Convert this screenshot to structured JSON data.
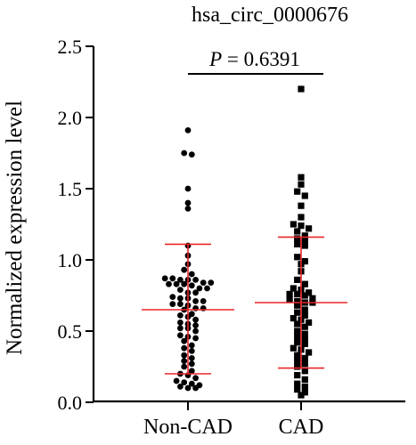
{
  "chart_data": {
    "type": "scatter",
    "title": "hsa_circ_0000676",
    "xlabel": "",
    "ylabel": "Normalized expression level",
    "categories": [
      "Non-CAD",
      "CAD"
    ],
    "ylim": [
      0,
      2.5
    ],
    "yticks": [
      "0.0",
      "0.5",
      "1.0",
      "1.5",
      "2.0",
      "2.5"
    ],
    "annotation": {
      "italic": "P",
      "rest": " = 0.6391"
    },
    "colors": {
      "points": "#000000",
      "error_bars": "#e8262a",
      "axes": "#000000"
    },
    "series": [
      {
        "category": "Non-CAD",
        "marker": "circle",
        "mean": 0.65,
        "upper": 1.11,
        "lower": 0.2,
        "values": [
          1.91,
          1.75,
          1.74,
          1.5,
          1.4,
          1.36,
          1.1,
          1.03,
          0.97,
          0.93,
          0.9,
          0.87,
          0.87,
          0.86,
          0.86,
          0.86,
          0.84,
          0.84,
          0.83,
          0.83,
          0.83,
          0.82,
          0.8,
          0.8,
          0.79,
          0.77,
          0.77,
          0.74,
          0.73,
          0.73,
          0.71,
          0.71,
          0.69,
          0.69,
          0.68,
          0.66,
          0.66,
          0.65,
          0.62,
          0.61,
          0.6,
          0.58,
          0.56,
          0.55,
          0.54,
          0.52,
          0.52,
          0.5,
          0.47,
          0.46,
          0.45,
          0.43,
          0.4,
          0.38,
          0.36,
          0.33,
          0.31,
          0.29,
          0.27,
          0.25,
          0.22,
          0.2,
          0.19,
          0.17,
          0.15,
          0.14,
          0.13,
          0.12,
          0.11,
          0.1,
          0.1
        ]
      },
      {
        "category": "CAD",
        "marker": "square",
        "mean": 0.7,
        "upper": 1.16,
        "lower": 0.24,
        "values": [
          2.2,
          1.58,
          1.53,
          1.48,
          1.45,
          1.38,
          1.3,
          1.25,
          1.24,
          1.22,
          1.2,
          1.17,
          1.15,
          1.13,
          1.11,
          1.1,
          1.02,
          0.99,
          0.97,
          0.92,
          0.86,
          0.83,
          0.8,
          0.79,
          0.77,
          0.76,
          0.76,
          0.75,
          0.73,
          0.72,
          0.71,
          0.7,
          0.7,
          0.68,
          0.65,
          0.63,
          0.61,
          0.59,
          0.58,
          0.56,
          0.55,
          0.53,
          0.5,
          0.48,
          0.46,
          0.44,
          0.42,
          0.41,
          0.38,
          0.37,
          0.35,
          0.33,
          0.31,
          0.29,
          0.27,
          0.25,
          0.22,
          0.19,
          0.16,
          0.13,
          0.11,
          0.09,
          0.07,
          0.05
        ]
      }
    ]
  }
}
